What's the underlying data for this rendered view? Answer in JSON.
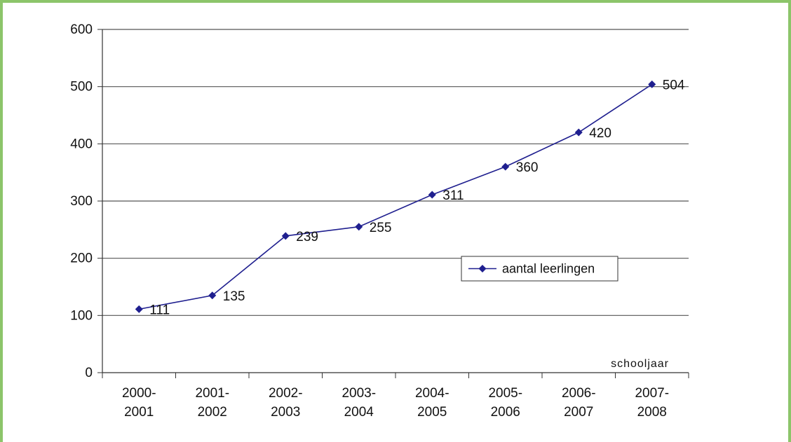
{
  "chart_data": {
    "type": "line",
    "categories": [
      [
        "2000-",
        "2001"
      ],
      [
        "2001-",
        "2002"
      ],
      [
        "2002-",
        "2003"
      ],
      [
        "2003-",
        "2004"
      ],
      [
        "2004-",
        "2005"
      ],
      [
        "2005-",
        "2006"
      ],
      [
        "2006-",
        "2007"
      ],
      [
        "2007-",
        "2008"
      ]
    ],
    "series": [
      {
        "name": "aantal leerlingen",
        "values": [
          111,
          135,
          239,
          255,
          311,
          360,
          420,
          504
        ]
      }
    ],
    "data_labels": [
      "111",
      "135",
      "239",
      "255",
      "311",
      "360",
      "420",
      "504"
    ],
    "xlabel": "schooljaar",
    "ylabel": "",
    "ylim": [
      0,
      600
    ],
    "yticks": [
      0,
      100,
      200,
      300,
      400,
      500,
      600
    ],
    "grid": true,
    "legend_position": "right",
    "colors": {
      "series": "#1f1f8f",
      "grid": "#555555",
      "frame": "#8cc56a"
    }
  }
}
